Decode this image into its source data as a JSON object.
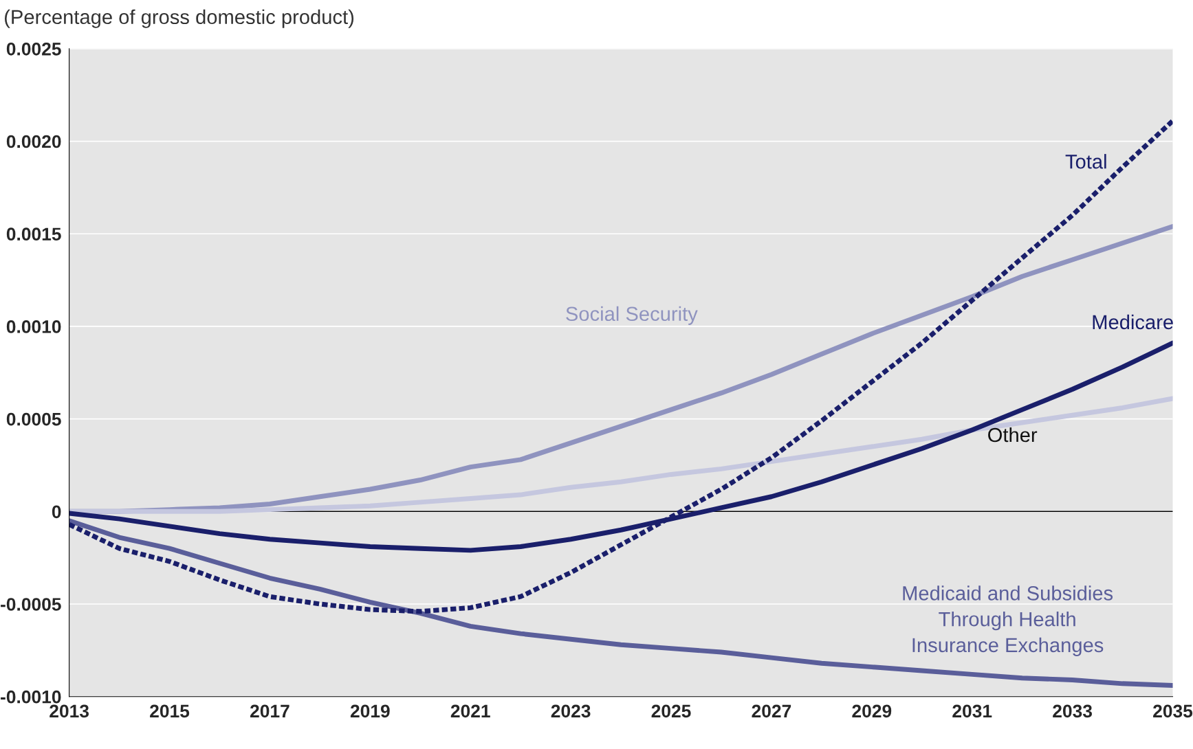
{
  "chart_data": {
    "type": "line",
    "title": "(Percentage of gross domestic product)",
    "x": [
      2013,
      2014,
      2015,
      2016,
      2017,
      2018,
      2019,
      2020,
      2021,
      2022,
      2023,
      2024,
      2025,
      2026,
      2027,
      2028,
      2029,
      2030,
      2031,
      2032,
      2033,
      2034,
      2035
    ],
    "series": [
      {
        "name": "Social Security",
        "color": "#8f93bf",
        "line_style": "solid",
        "values": [
          0,
          0,
          1e-05,
          2e-05,
          4e-05,
          8e-05,
          0.00012,
          0.00017,
          0.00024,
          0.00028,
          0.00037,
          0.00046,
          0.00055,
          0.00064,
          0.00074,
          0.00085,
          0.00096,
          0.00106,
          0.00116,
          0.00127,
          0.00136,
          0.00145,
          0.00154
        ]
      },
      {
        "name": "Other",
        "color": "#c5c7df",
        "line_style": "solid",
        "values": [
          0,
          0,
          0,
          0,
          1e-05,
          2e-05,
          3e-05,
          5e-05,
          7e-05,
          9e-05,
          0.00013,
          0.00016,
          0.0002,
          0.00023,
          0.00027,
          0.00031,
          0.00035,
          0.00039,
          0.00044,
          0.00048,
          0.00052,
          0.00056,
          0.00061
        ]
      },
      {
        "name": "Medicare",
        "color": "#1a1f6b",
        "line_style": "solid",
        "values": [
          -1e-05,
          -4e-05,
          -8e-05,
          -0.00012,
          -0.00015,
          -0.00017,
          -0.00019,
          -0.0002,
          -0.00021,
          -0.00019,
          -0.00015,
          -0.0001,
          -4e-05,
          2e-05,
          8e-05,
          0.00016,
          0.00025,
          0.00034,
          0.00044,
          0.00055,
          0.00066,
          0.00078,
          0.00091
        ]
      },
      {
        "name": "Medicaid and Subsidies\nThrough Health\nInsurance Exchanges",
        "color": "#5a5e9a",
        "line_style": "solid",
        "values": [
          -5e-05,
          -0.00014,
          -0.0002,
          -0.00028,
          -0.00036,
          -0.00042,
          -0.00049,
          -0.00055,
          -0.00062,
          -0.00066,
          -0.00069,
          -0.00072,
          -0.00074,
          -0.00076,
          -0.00079,
          -0.00082,
          -0.00084,
          -0.00086,
          -0.00088,
          -0.0009,
          -0.00091,
          -0.00093,
          -0.00094
        ]
      },
      {
        "name": "Total",
        "color": "#1a1f6b",
        "line_style": "dotted",
        "values": [
          -7e-05,
          -0.0002,
          -0.00027,
          -0.00037,
          -0.00046,
          -0.0005,
          -0.00053,
          -0.00054,
          -0.00052,
          -0.00046,
          -0.00033,
          -0.00018,
          -3e-05,
          0.00012,
          0.00029,
          0.00049,
          0.0007,
          0.00091,
          0.00114,
          0.00137,
          0.0016,
          0.00186,
          0.00211
        ]
      }
    ],
    "xlim": [
      2013,
      2035
    ],
    "xticks": [
      2013,
      2015,
      2017,
      2019,
      2021,
      2023,
      2025,
      2027,
      2029,
      2031,
      2033,
      2035
    ],
    "ylim": [
      -0.001,
      0.0025
    ],
    "yticks": [
      {
        "value": -0.001,
        "label": "-0.0010"
      },
      {
        "value": -0.0005,
        "label": "-0.0005"
      },
      {
        "value": 0,
        "label": "0"
      },
      {
        "value": 0.0005,
        "label": "0.0005"
      },
      {
        "value": 0.001,
        "label": "0.0010"
      },
      {
        "value": 0.0015,
        "label": "0.0015"
      },
      {
        "value": 0.002,
        "label": "0.0020"
      },
      {
        "value": 0.0025,
        "label": "0.0025"
      }
    ],
    "ref_lines": [
      {
        "axis": "y",
        "value": 0,
        "color": "#000000"
      }
    ],
    "grid": "y"
  }
}
